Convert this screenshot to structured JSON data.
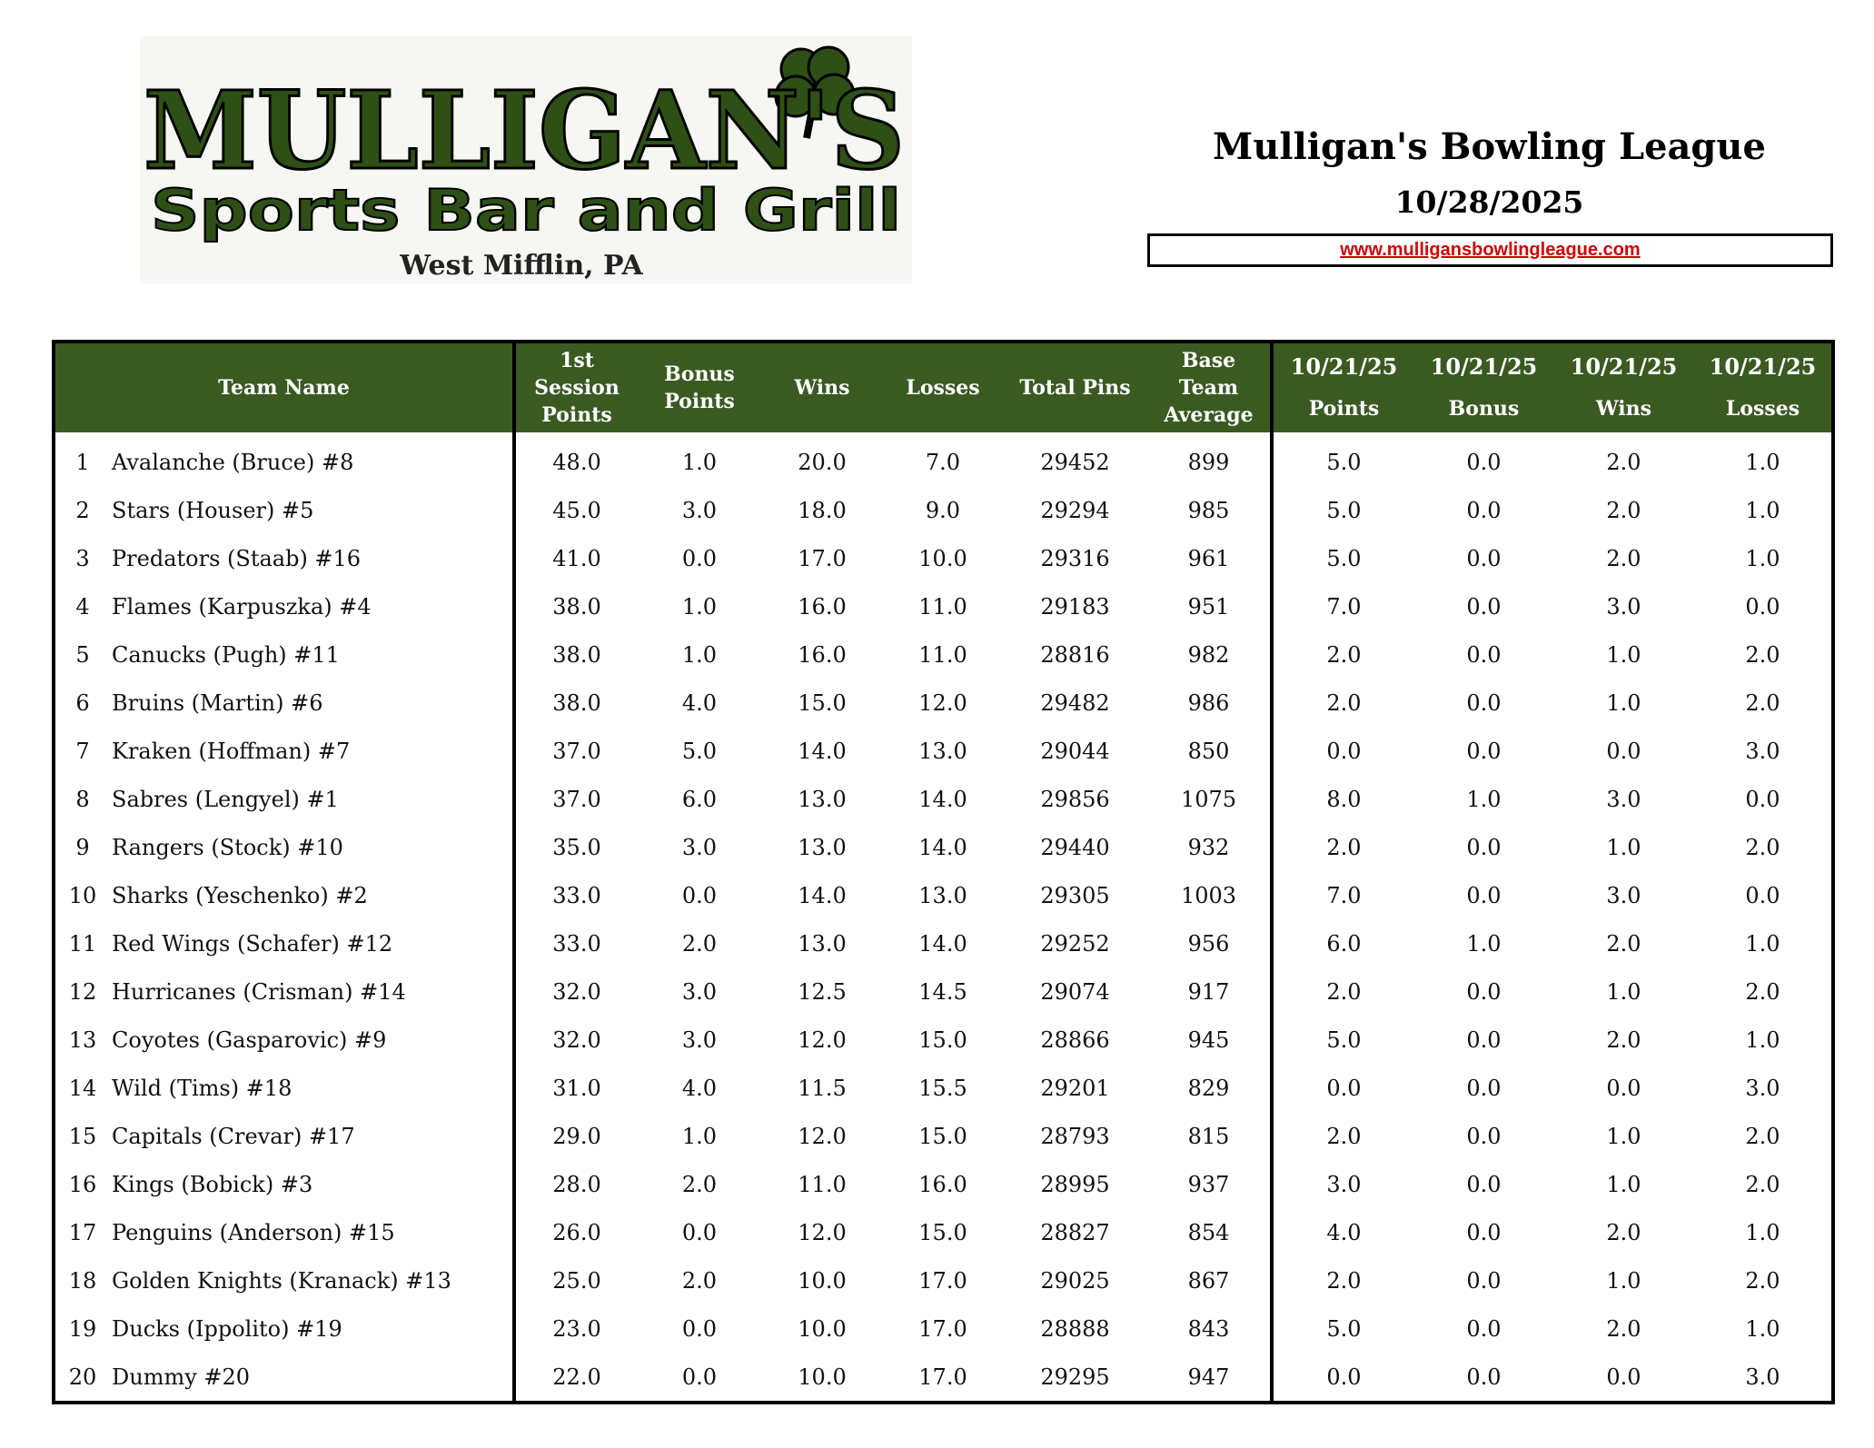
{
  "logo": {
    "name": "MULLIGAN'S",
    "subtitle": "Sports Bar and Grill",
    "location": "West Mifflin, PA"
  },
  "header": {
    "title": "Mulligan's Bowling League",
    "date": "10/28/2025",
    "url": "www.mulligansbowlingleague.com"
  },
  "table": {
    "headers": [
      [
        "Team Name"
      ],
      [
        "1st",
        "Session",
        "Points"
      ],
      [
        "Bonus",
        "Points"
      ],
      [
        "Wins"
      ],
      [
        "Losses"
      ],
      [
        "Total Pins"
      ],
      [
        "Base",
        "Team",
        "Average"
      ],
      [
        "10/21/25",
        "Points"
      ],
      [
        "10/21/25",
        "Bonus"
      ],
      [
        "10/21/25",
        "Wins"
      ],
      [
        "10/21/25",
        "Losses"
      ]
    ],
    "rows": [
      [
        "1",
        "Avalanche (Bruce) #8",
        "48.0",
        "1.0",
        "20.0",
        "7.0",
        "29452",
        "899",
        "5.0",
        "0.0",
        "2.0",
        "1.0"
      ],
      [
        "2",
        "Stars (Houser) #5",
        "45.0",
        "3.0",
        "18.0",
        "9.0",
        "29294",
        "985",
        "5.0",
        "0.0",
        "2.0",
        "1.0"
      ],
      [
        "3",
        "Predators (Staab) #16",
        "41.0",
        "0.0",
        "17.0",
        "10.0",
        "29316",
        "961",
        "5.0",
        "0.0",
        "2.0",
        "1.0"
      ],
      [
        "4",
        "Flames (Karpuszka) #4",
        "38.0",
        "1.0",
        "16.0",
        "11.0",
        "29183",
        "951",
        "7.0",
        "0.0",
        "3.0",
        "0.0"
      ],
      [
        "5",
        "Canucks (Pugh) #11",
        "38.0",
        "1.0",
        "16.0",
        "11.0",
        "28816",
        "982",
        "2.0",
        "0.0",
        "1.0",
        "2.0"
      ],
      [
        "6",
        "Bruins (Martin) #6",
        "38.0",
        "4.0",
        "15.0",
        "12.0",
        "29482",
        "986",
        "2.0",
        "0.0",
        "1.0",
        "2.0"
      ],
      [
        "7",
        "Kraken (Hoffman) #7",
        "37.0",
        "5.0",
        "14.0",
        "13.0",
        "29044",
        "850",
        "0.0",
        "0.0",
        "0.0",
        "3.0"
      ],
      [
        "8",
        "Sabres (Lengyel) #1",
        "37.0",
        "6.0",
        "13.0",
        "14.0",
        "29856",
        "1075",
        "8.0",
        "1.0",
        "3.0",
        "0.0"
      ],
      [
        "9",
        "Rangers (Stock) #10",
        "35.0",
        "3.0",
        "13.0",
        "14.0",
        "29440",
        "932",
        "2.0",
        "0.0",
        "1.0",
        "2.0"
      ],
      [
        "10",
        "Sharks (Yeschenko) #2",
        "33.0",
        "0.0",
        "14.0",
        "13.0",
        "29305",
        "1003",
        "7.0",
        "0.0",
        "3.0",
        "0.0"
      ],
      [
        "11",
        "Red Wings (Schafer) #12",
        "33.0",
        "2.0",
        "13.0",
        "14.0",
        "29252",
        "956",
        "6.0",
        "1.0",
        "2.0",
        "1.0"
      ],
      [
        "12",
        "Hurricanes (Crisman) #14",
        "32.0",
        "3.0",
        "12.5",
        "14.5",
        "29074",
        "917",
        "2.0",
        "0.0",
        "1.0",
        "2.0"
      ],
      [
        "13",
        "Coyotes (Gasparovic) #9",
        "32.0",
        "3.0",
        "12.0",
        "15.0",
        "28866",
        "945",
        "5.0",
        "0.0",
        "2.0",
        "1.0"
      ],
      [
        "14",
        "Wild (Tims) #18",
        "31.0",
        "4.0",
        "11.5",
        "15.5",
        "29201",
        "829",
        "0.0",
        "0.0",
        "0.0",
        "3.0"
      ],
      [
        "15",
        "Capitals (Crevar) #17",
        "29.0",
        "1.0",
        "12.0",
        "15.0",
        "28793",
        "815",
        "2.0",
        "0.0",
        "1.0",
        "2.0"
      ],
      [
        "16",
        "Kings (Bobick) #3",
        "28.0",
        "2.0",
        "11.0",
        "16.0",
        "28995",
        "937",
        "3.0",
        "0.0",
        "1.0",
        "2.0"
      ],
      [
        "17",
        "Penguins (Anderson) #15",
        "26.0",
        "0.0",
        "12.0",
        "15.0",
        "28827",
        "854",
        "4.0",
        "0.0",
        "2.0",
        "1.0"
      ],
      [
        "18",
        "Golden Knights (Kranack) #13",
        "25.0",
        "2.0",
        "10.0",
        "17.0",
        "29025",
        "867",
        "2.0",
        "0.0",
        "1.0",
        "2.0"
      ],
      [
        "19",
        "Ducks (Ippolito) #19",
        "23.0",
        "0.0",
        "10.0",
        "17.0",
        "28888",
        "843",
        "5.0",
        "0.0",
        "2.0",
        "1.0"
      ],
      [
        "20",
        "Dummy #20",
        "22.0",
        "0.0",
        "10.0",
        "17.0",
        "29295",
        "947",
        "0.0",
        "0.0",
        "0.0",
        "3.0"
      ]
    ]
  }
}
